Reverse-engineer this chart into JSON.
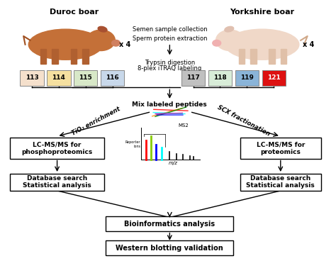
{
  "bg_color": "#ffffff",
  "duroc_label": "Duroc boar",
  "yorkshire_label": "Yorkshire boar",
  "x4_left": "x 4",
  "x4_right": "x 4",
  "left_tags": [
    "113",
    "114",
    "115",
    "116"
  ],
  "right_tags": [
    "117",
    "118",
    "119",
    "121"
  ],
  "left_tag_colors": [
    "#f5e0cc",
    "#f5e0a0",
    "#d8e8c8",
    "#c8d8ea"
  ],
  "right_tag_colors": [
    "#c0c0c0",
    "#d8ecd8",
    "#8ab4d8",
    "#dd1111"
  ],
  "top_center_text1": "Semen sample collection",
  "top_center_text2": "Sperm protein extraction",
  "mid_center_text1": "Trypsin digestion",
  "mid_center_text2": "8-plex iTRAQ labeling",
  "mix_label": "Mix labeled peptides",
  "tio2_label": "TiO₂ enrichment",
  "scx_label": "SCX fractionation",
  "box1_text": "LC-MS/MS for\nphosphoproteomics",
  "box2_text": "LC-MS/MS for\nproteomics",
  "box3_text": "Database search\nStatistical analysis",
  "box4_text": "Database search\nStatistical analysis",
  "box5_text": "Bioinformatics analysis",
  "box6_text": "Western blotting validation",
  "ms2_label": "MS2",
  "reporter_label": "Reporter\nions",
  "mz_label": "m/z",
  "figsize": [
    4.74,
    3.92
  ],
  "dpi": 100
}
